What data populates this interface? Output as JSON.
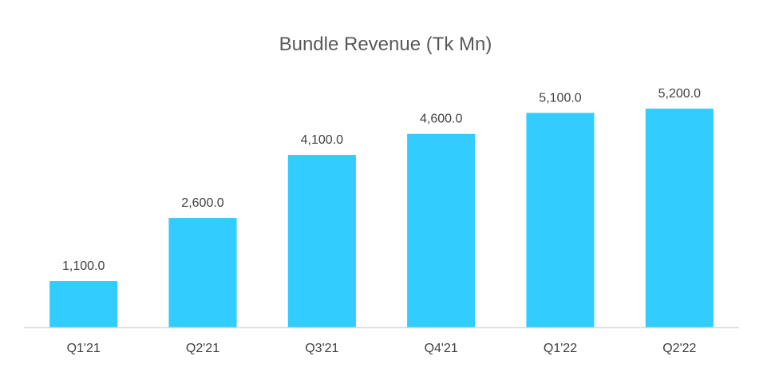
{
  "chart_data": {
    "type": "bar",
    "title": "Bundle Revenue (Tk Mn)",
    "categories": [
      "Q1'21",
      "Q2'21",
      "Q3'21",
      "Q4'21",
      "Q1'22",
      "Q2'22"
    ],
    "values": [
      1100,
      2600,
      4100,
      4600,
      5100,
      5200
    ],
    "value_labels": [
      "1,100.0",
      "2,600.0",
      "4,100.0",
      "4,600.0",
      "5,100.0",
      "5,200.0"
    ],
    "xlabel": "",
    "ylabel": "",
    "ylim": [
      0,
      6000
    ],
    "grid": false,
    "legend": "none",
    "bar_color": "#33CCFF",
    "axis_color": "#D9D9D9"
  }
}
